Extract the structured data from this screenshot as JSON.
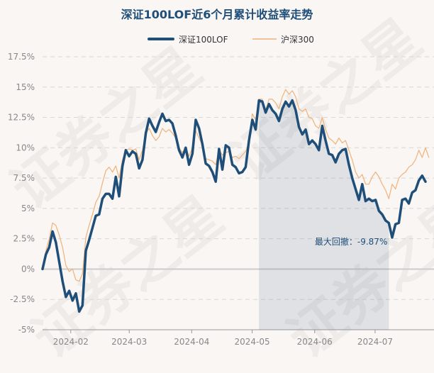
{
  "chart_data": {
    "type": "line",
    "title": "深证100LOF近6个月累计收益率走势",
    "x_ticks": [
      "2024-02",
      "2024-03",
      "2024-04",
      "2024-05",
      "2024-06",
      "2024-07"
    ],
    "y_ticks": [
      "17.5%",
      "15%",
      "12.5%",
      "10%",
      "7.5%",
      "5%",
      "2.5%",
      "0%",
      "-2.5%",
      "-5%"
    ],
    "ylim": [
      -5,
      17.5
    ],
    "date_range": [
      "2024-01-18",
      "2024-07-26"
    ],
    "series": [
      {
        "name": "深证100LOF",
        "color": "#1f4e79",
        "values": [
          0,
          1.2,
          1.8,
          3.1,
          2.2,
          0.6,
          -1.0,
          -2.3,
          -1.8,
          -2.6,
          -2.0,
          -3.5,
          -3.0,
          1.5,
          2.4,
          3.4,
          4.4,
          4.5,
          5.8,
          6.2,
          6.2,
          5.8,
          7.6,
          6.0,
          8.5,
          9.8,
          9.3,
          9.7,
          9.5,
          8.3,
          9.0,
          11.2,
          12.4,
          11.8,
          11.3,
          12.1,
          12.8,
          12.2,
          12.3,
          12.0,
          11.0,
          9.8,
          9.2,
          10.0,
          8.6,
          9.5,
          12.3,
          11.6,
          10.3,
          8.7,
          8.5,
          8.0,
          7.2,
          9.9,
          8.2,
          10.2,
          10.0,
          8.6,
          8.4,
          7.9,
          8.0,
          8.4,
          10.6,
          12.3,
          11.5,
          13.9,
          13.8,
          12.9,
          13.6,
          13.1,
          12.8,
          12.2,
          13.2,
          13.8,
          13.4,
          13.9,
          13.1,
          11.7,
          11.1,
          11.5,
          10.3,
          10.6,
          10.3,
          9.8,
          11.8,
          10.6,
          9.5,
          9.4,
          8.8,
          9.5,
          9.8,
          9.9,
          8.6,
          7.5,
          6.6,
          5.7,
          7.0,
          5.6,
          5.8,
          5.6,
          5.7,
          4.8,
          4.5,
          4.0,
          3.8,
          2.6,
          3.7,
          3.8,
          5.7,
          5.8,
          5.4,
          6.3,
          6.5,
          7.3,
          7.7,
          7.2
        ]
      },
      {
        "name": "沪深300",
        "color": "#f0b27a",
        "values": [
          0,
          1.5,
          2.5,
          3.8,
          3.6,
          2.8,
          1.8,
          0.3,
          -0.2,
          0.0,
          -0.9,
          -1.0,
          -0.4,
          2.6,
          3.6,
          4.5,
          5.5,
          6.0,
          7.1,
          8.1,
          8.4,
          8.0,
          8.5,
          7.5,
          9.0,
          9.8,
          9.9,
          9.8,
          9.9,
          9.0,
          9.8,
          11.2,
          11.6,
          11.0,
          10.6,
          10.9,
          11.6,
          11.3,
          11.5,
          11.2,
          10.8,
          10.0,
          9.6,
          10.0,
          9.3,
          10.0,
          11.4,
          10.8,
          10.2,
          9.1,
          9.0,
          8.9,
          8.6,
          9.8,
          9.4,
          9.6,
          9.7,
          9.2,
          9.3,
          9.1,
          9.4,
          9.7,
          10.4,
          12.8,
          12.3,
          14.0,
          14.0,
          13.0,
          14.0,
          14.0,
          13.7,
          13.2,
          14.2,
          14.8,
          14.4,
          14.7,
          14.2,
          13.2,
          13.0,
          13.2,
          12.5,
          12.4,
          11.8,
          11.6,
          12.5,
          11.5,
          10.8,
          10.6,
          10.3,
          10.8,
          10.4,
          10.6,
          9.8,
          9.0,
          8.0,
          7.5,
          7.8,
          7.0,
          7.0,
          7.6,
          8.0,
          7.6,
          7.0,
          6.5,
          5.8,
          7.0,
          6.6,
          7.5,
          7.8,
          8.0,
          8.4,
          8.6,
          9.0,
          9.8,
          9.2,
          10.0,
          9.2
        ]
      }
    ],
    "annotation": {
      "label": "最大回撤：-9.87%",
      "start_index": 65,
      "end_index": 104
    }
  }
}
